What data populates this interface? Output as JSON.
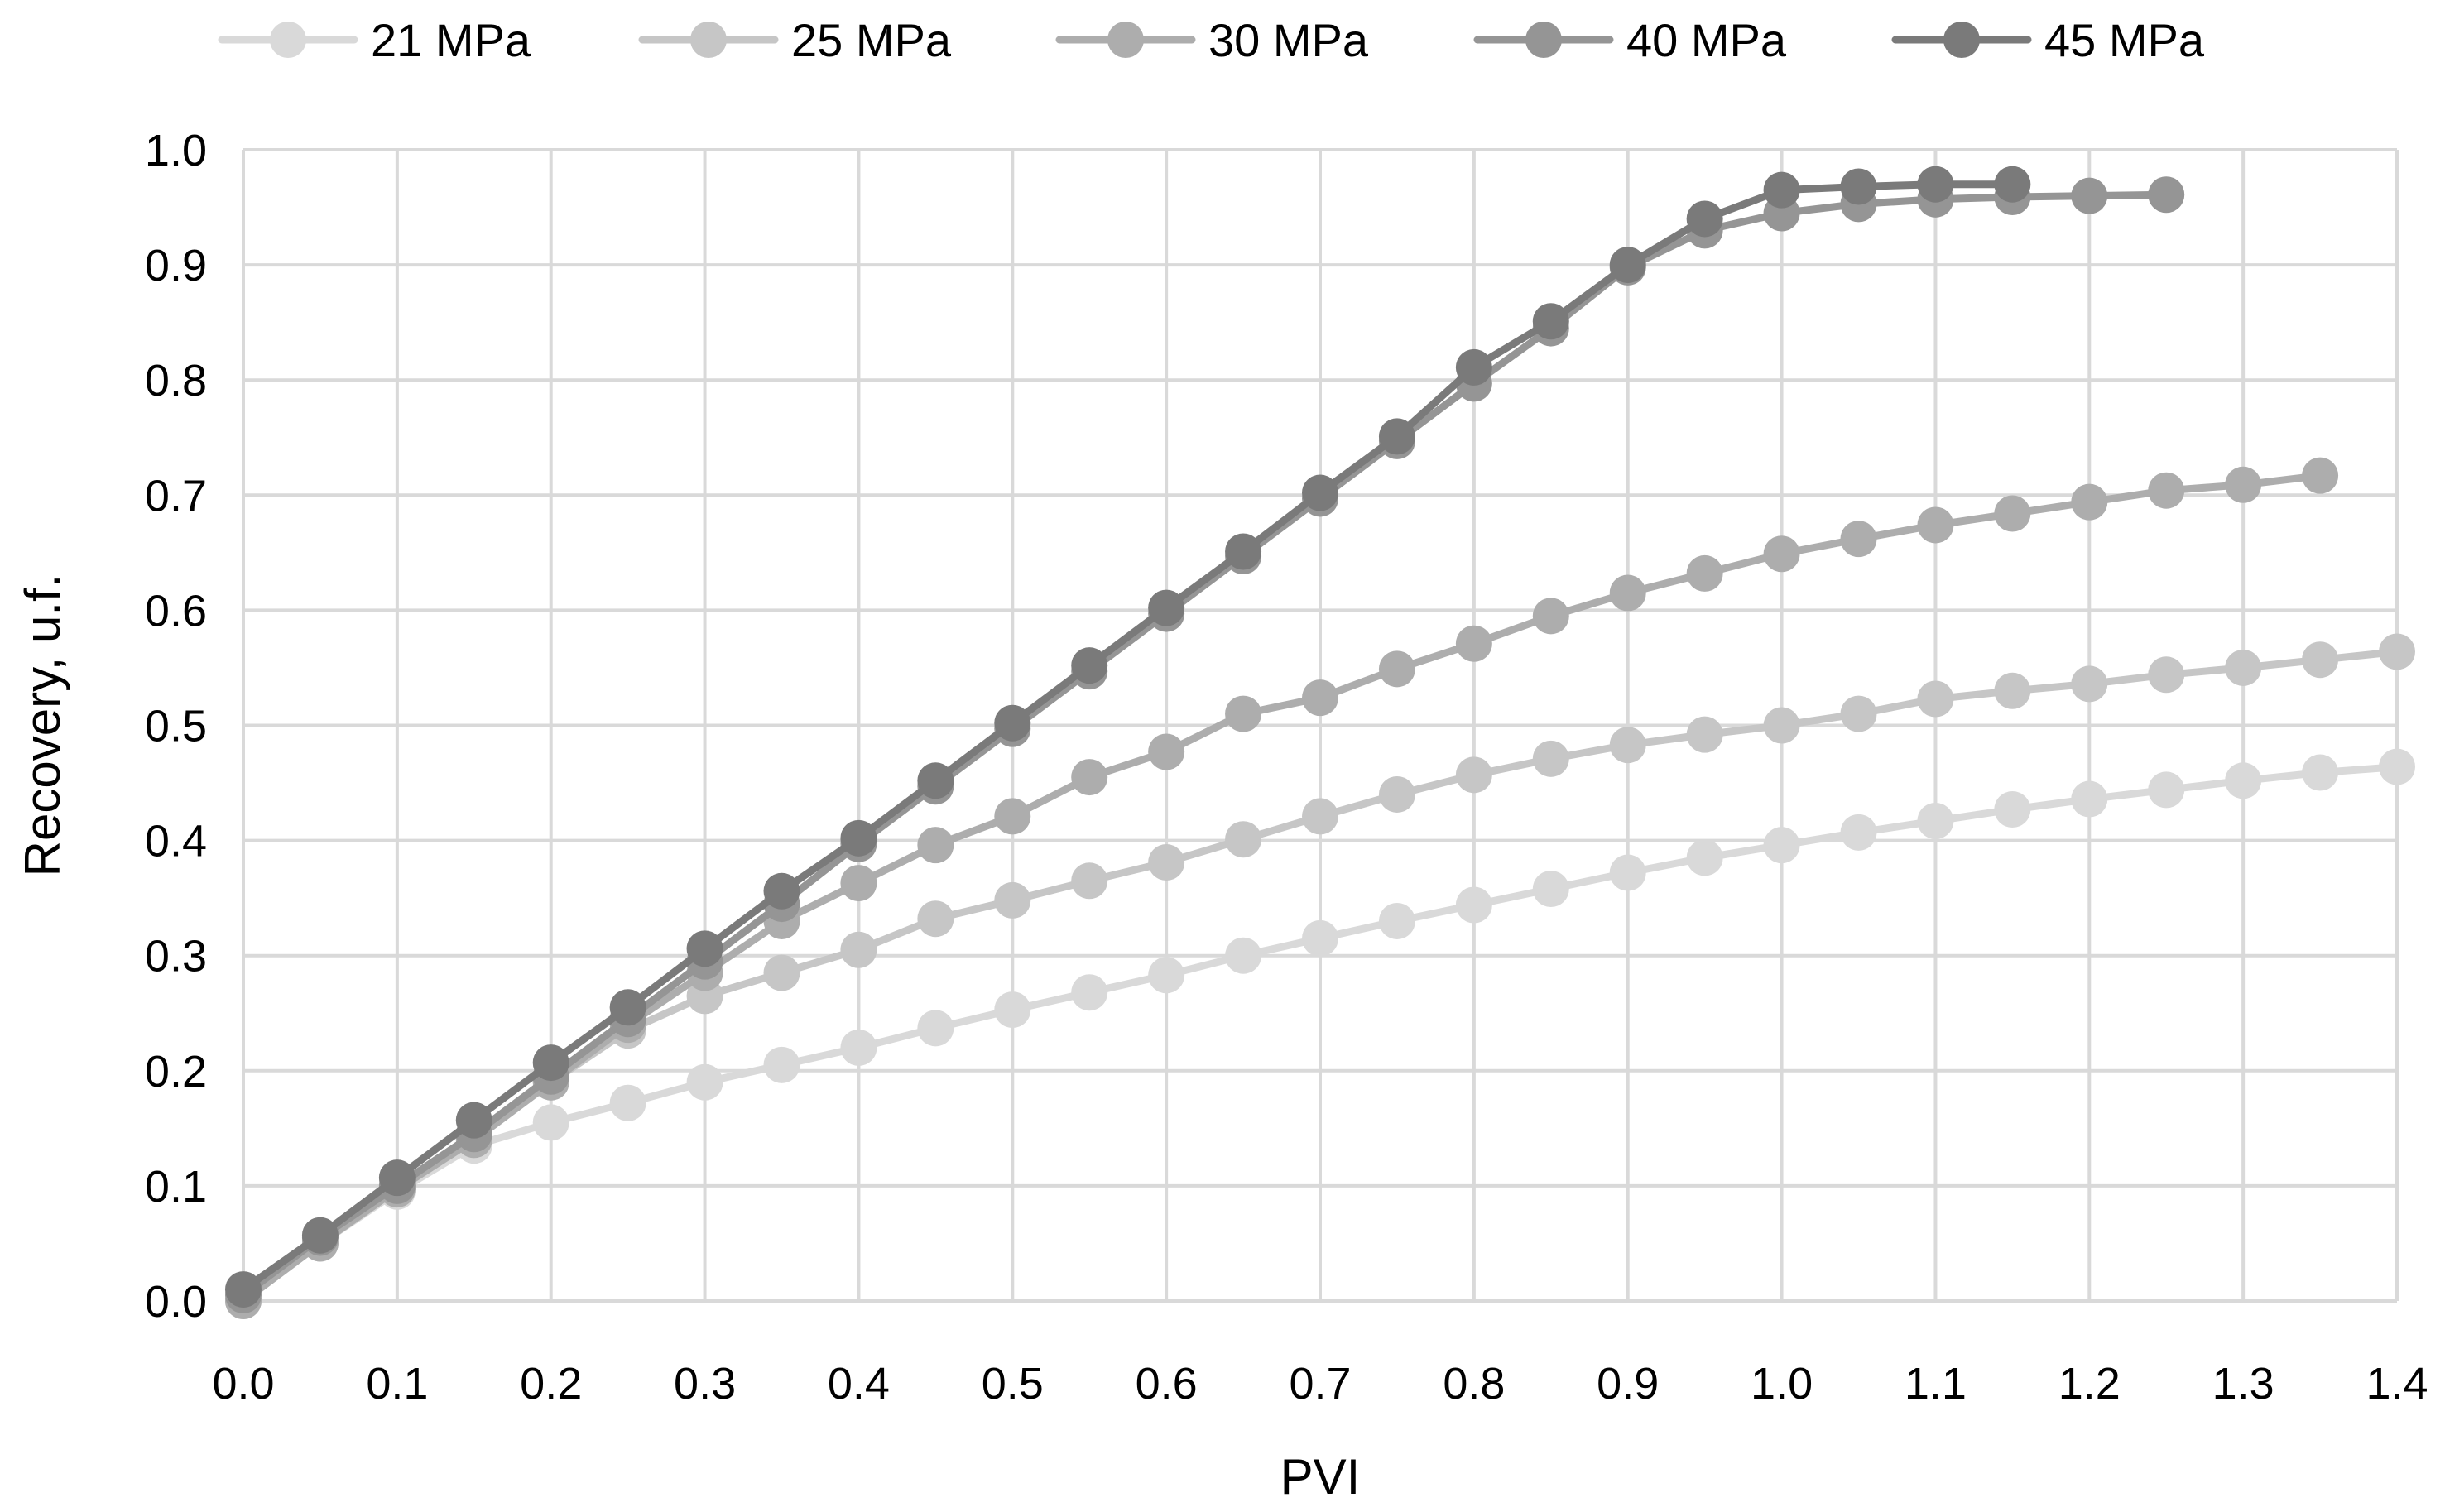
{
  "chart_data": {
    "type": "line",
    "title": "",
    "xlabel": "PVI",
    "ylabel": "Recovery, u.f.",
    "xlim": [
      0.0,
      1.4
    ],
    "ylim": [
      0.0,
      1.0
    ],
    "x_ticks": [
      "0.0",
      "0.1",
      "0.2",
      "0.3",
      "0.4",
      "0.5",
      "0.6",
      "0.7",
      "0.8",
      "0.9",
      "1.0",
      "1.1",
      "1.2",
      "1.3",
      "1.4"
    ],
    "y_ticks": [
      "0.0",
      "0.1",
      "0.2",
      "0.3",
      "0.4",
      "0.5",
      "0.6",
      "0.7",
      "0.8",
      "0.9",
      "1.0"
    ],
    "grid": true,
    "legend_position": "top",
    "series": [
      {
        "name": "21 MPa",
        "color": "#d9d9d9",
        "x": [
          0.0,
          0.05,
          0.1,
          0.15,
          0.2,
          0.25,
          0.3,
          0.35,
          0.4,
          0.45,
          0.5,
          0.55,
          0.6,
          0.65,
          0.7,
          0.75,
          0.8,
          0.85,
          0.9,
          0.95,
          1.0,
          1.05,
          1.1,
          1.15,
          1.2,
          1.25,
          1.3,
          1.35,
          1.4
        ],
        "y": [
          0.0,
          0.05,
          0.095,
          0.135,
          0.155,
          0.172,
          0.19,
          0.205,
          0.22,
          0.237,
          0.253,
          0.268,
          0.283,
          0.3,
          0.315,
          0.33,
          0.344,
          0.358,
          0.372,
          0.385,
          0.396,
          0.407,
          0.417,
          0.427,
          0.436,
          0.444,
          0.452,
          0.459,
          0.464
        ]
      },
      {
        "name": "25 MPa",
        "color": "#c6c6c6",
        "x": [
          0.0,
          0.05,
          0.1,
          0.15,
          0.2,
          0.25,
          0.3,
          0.35,
          0.4,
          0.45,
          0.5,
          0.55,
          0.6,
          0.65,
          0.7,
          0.75,
          0.8,
          0.85,
          0.9,
          0.95,
          1.0,
          1.05,
          1.1,
          1.15,
          1.2,
          1.25,
          1.3,
          1.35,
          1.4
        ],
        "y": [
          0.0,
          0.05,
          0.097,
          0.14,
          0.19,
          0.235,
          0.265,
          0.285,
          0.305,
          0.332,
          0.348,
          0.365,
          0.381,
          0.401,
          0.421,
          0.44,
          0.457,
          0.471,
          0.483,
          0.492,
          0.5,
          0.51,
          0.523,
          0.53,
          0.536,
          0.544,
          0.55,
          0.557,
          0.564
        ]
      },
      {
        "name": "30 MPa",
        "color": "#adadad",
        "x": [
          0.0,
          0.05,
          0.1,
          0.15,
          0.2,
          0.25,
          0.3,
          0.35,
          0.4,
          0.45,
          0.5,
          0.55,
          0.6,
          0.65,
          0.7,
          0.75,
          0.8,
          0.85,
          0.9,
          0.95,
          1.0,
          1.05,
          1.1,
          1.15,
          1.2,
          1.25,
          1.3,
          1.35
        ],
        "y": [
          0.0,
          0.05,
          0.097,
          0.14,
          0.19,
          0.24,
          0.285,
          0.33,
          0.363,
          0.396,
          0.421,
          0.455,
          0.477,
          0.51,
          0.524,
          0.549,
          0.571,
          0.595,
          0.615,
          0.632,
          0.649,
          0.662,
          0.674,
          0.684,
          0.694,
          0.704,
          0.709,
          0.717
        ]
      },
      {
        "name": "40 MPa",
        "color": "#959595",
        "x": [
          0.0,
          0.05,
          0.1,
          0.15,
          0.2,
          0.25,
          0.3,
          0.35,
          0.4,
          0.45,
          0.5,
          0.55,
          0.6,
          0.65,
          0.7,
          0.75,
          0.8,
          0.85,
          0.9,
          0.95,
          1.0,
          1.05,
          1.1,
          1.15,
          1.2,
          1.25
        ],
        "y": [
          0.005,
          0.055,
          0.1,
          0.145,
          0.195,
          0.245,
          0.295,
          0.345,
          0.397,
          0.447,
          0.497,
          0.547,
          0.597,
          0.647,
          0.697,
          0.747,
          0.797,
          0.845,
          0.898,
          0.93,
          0.945,
          0.953,
          0.957,
          0.959,
          0.96,
          0.961
        ]
      },
      {
        "name": "45 MPa",
        "color": "#7a7a7a",
        "x": [
          0.0,
          0.05,
          0.1,
          0.15,
          0.2,
          0.25,
          0.3,
          0.35,
          0.4,
          0.45,
          0.5,
          0.55,
          0.6,
          0.65,
          0.7,
          0.75,
          0.8,
          0.85,
          0.9,
          0.95,
          1.0,
          1.05,
          1.1,
          1.15
        ],
        "y": [
          0.01,
          0.057,
          0.107,
          0.157,
          0.207,
          0.255,
          0.306,
          0.356,
          0.402,
          0.452,
          0.502,
          0.552,
          0.602,
          0.651,
          0.702,
          0.751,
          0.811,
          0.851,
          0.9,
          0.94,
          0.965,
          0.968,
          0.97,
          0.97
        ]
      }
    ]
  }
}
